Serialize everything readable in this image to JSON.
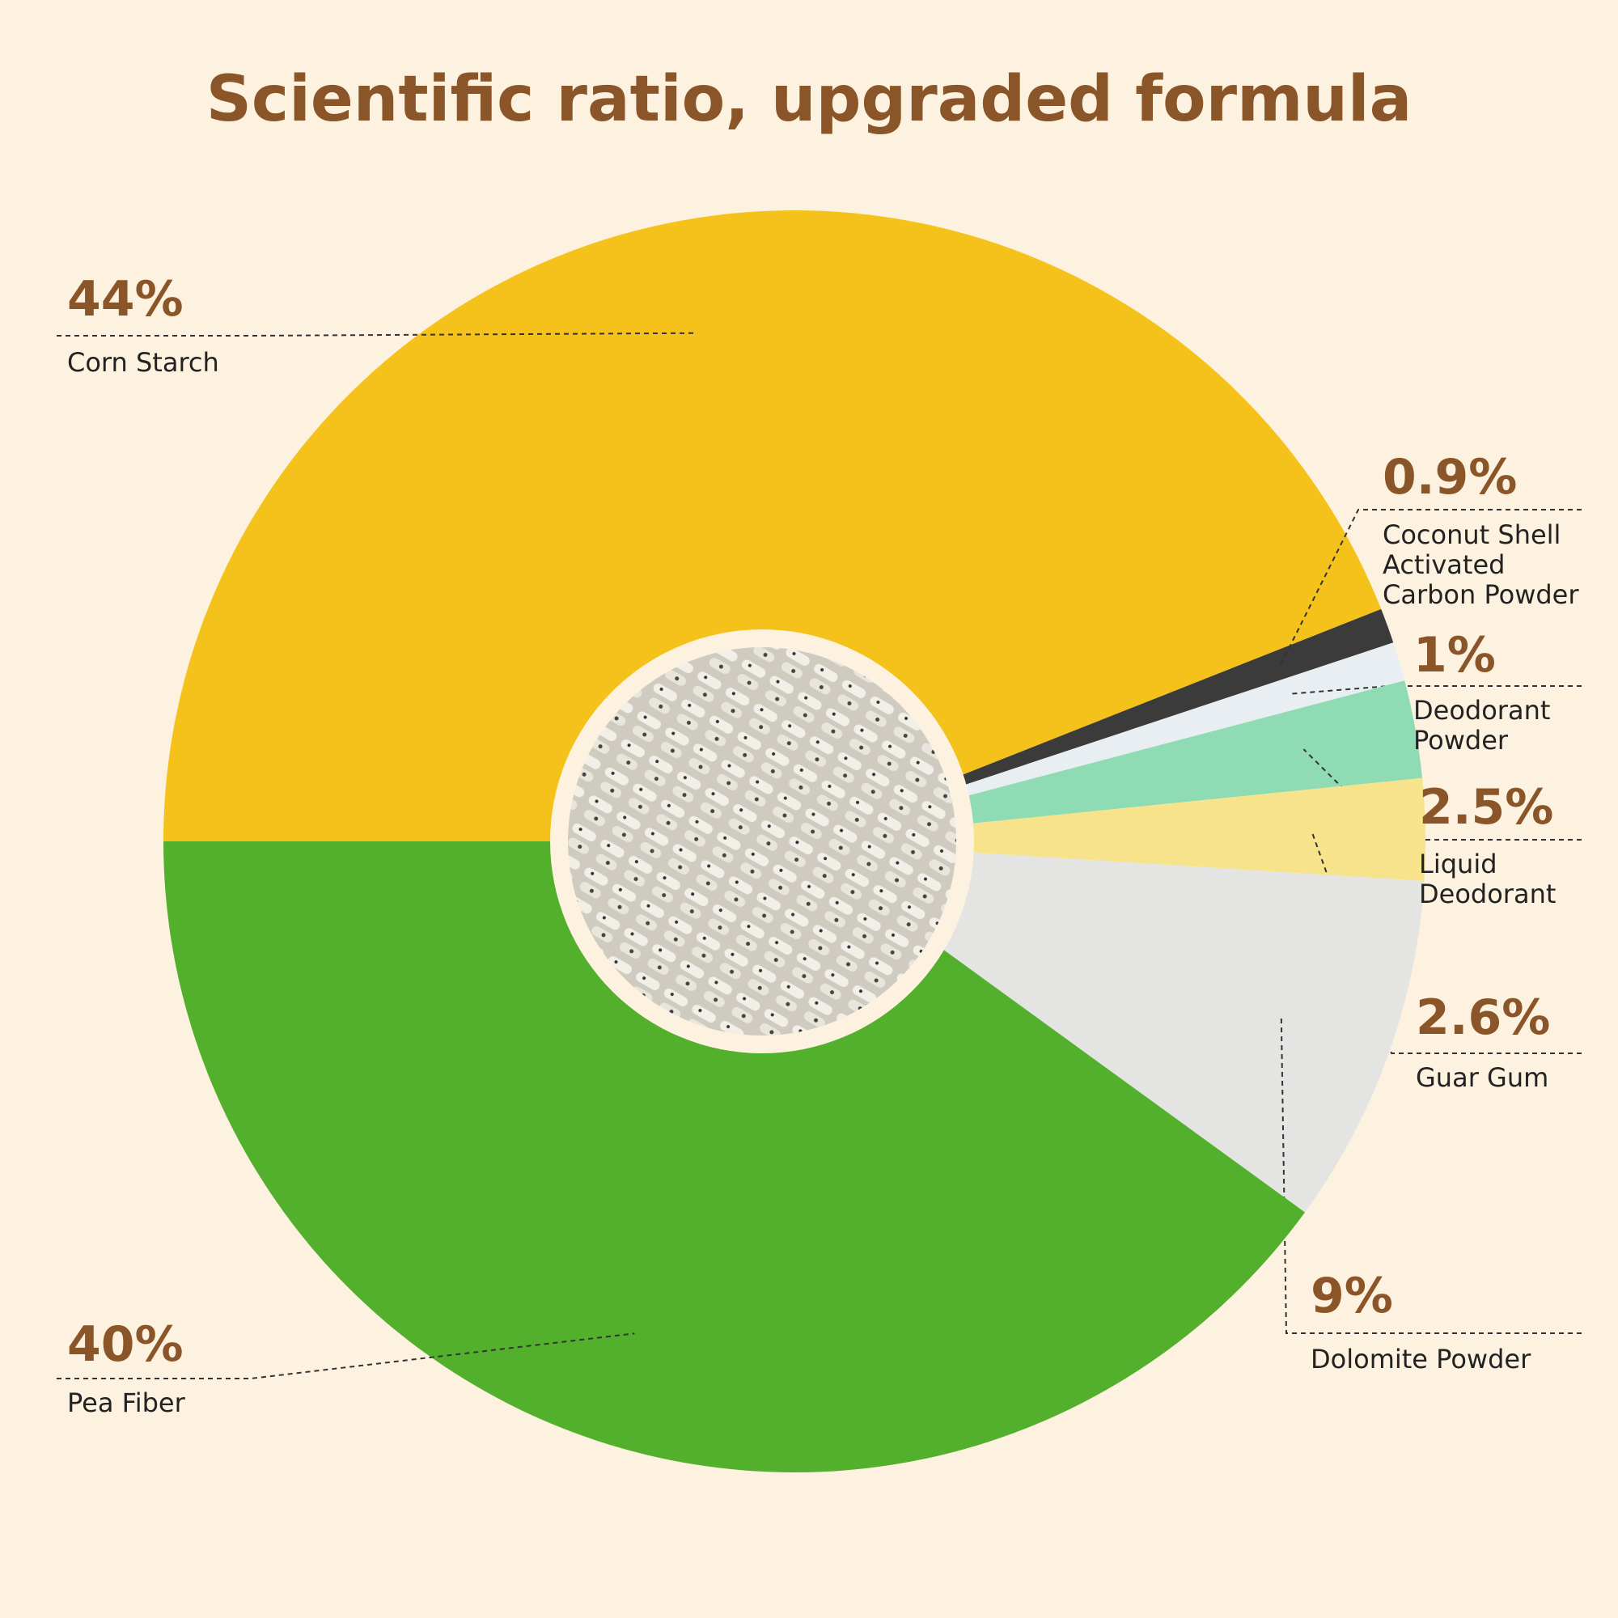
{
  "chart_data": {
    "type": "pie",
    "title": "Scientific ratio, upgraded formula",
    "categories": [
      "Corn Starch",
      "Coconut Shell Activated Carbon Powder",
      "Deodorant Powder",
      "Liquid Deodorant",
      "Guar Gum",
      "Dolomite Powder",
      "Pea Fiber"
    ],
    "values": [
      44,
      0.9,
      1,
      2.5,
      2.6,
      9,
      40
    ],
    "value_labels": [
      "44%",
      "0.9%",
      "1%",
      "2.5%",
      "2.6%",
      "9%",
      "40%"
    ],
    "colors": [
      "#f4c21a",
      "#3b3b3b",
      "#e9eef3",
      "#8fdcb4",
      "#f6e38c",
      "#e4e4e2",
      "#52b02c"
    ]
  }
}
